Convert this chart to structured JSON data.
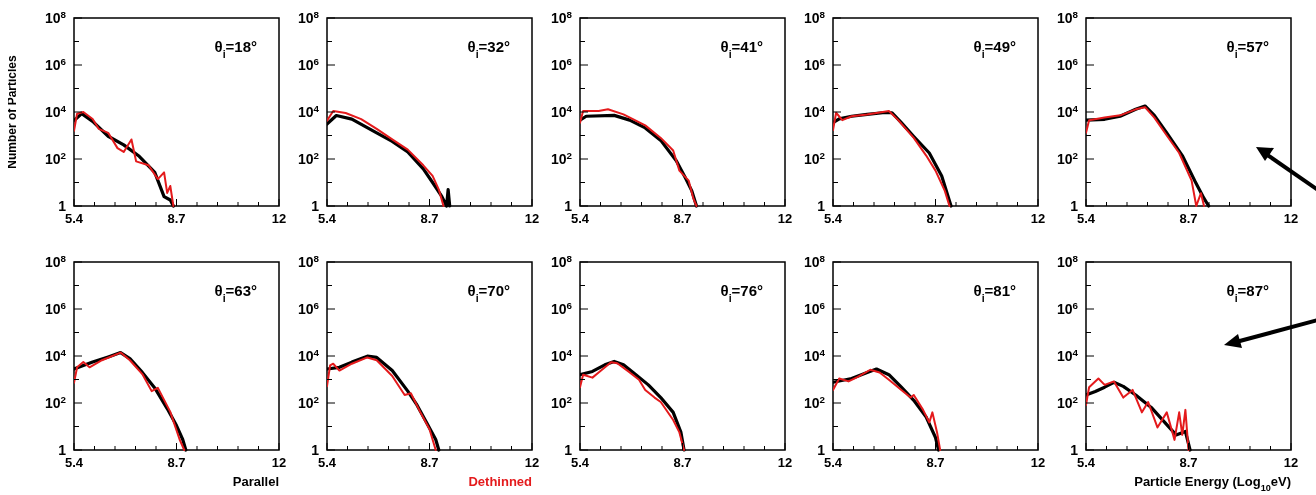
{
  "chart_data": [
    {
      "type": "line",
      "title": "θ$_{i}$=18°",
      "ylabel": "Number of Particles",
      "xlim": [
        5.4,
        12
      ],
      "ylim": [
        1,
        100000000
      ],
      "log": true,
      "xticks": [
        5.4,
        {
          "value": 6.06,
          "label": null
        },
        {
          "value": 6.72,
          "label": null
        },
        {
          "value": 7.38,
          "label": null
        },
        {
          "value": 8.04,
          "label": null
        },
        8.7,
        {
          "value": 9.36,
          "label": null
        },
        {
          "value": 10.02,
          "label": null
        },
        {
          "value": 10.68,
          "label": null
        },
        {
          "value": 11.34,
          "label": null
        },
        12
      ],
      "yticks": [
        {
          "value": 1,
          "label": "1"
        },
        {
          "value": 10,
          "label": null
        },
        {
          "value": 100,
          "label": "10$^{2}$"
        },
        {
          "value": 1000,
          "label": null
        },
        {
          "value": 10000,
          "label": "10$^{4}$"
        },
        {
          "value": 100000,
          "label": null
        },
        {
          "value": 1000000,
          "label": "10$^{6}$"
        },
        {
          "value": 10000000,
          "label": null
        },
        {
          "value": 100000000,
          "label": "10$^{8}$"
        }
      ],
      "series": [
        {
          "color": "#000000",
          "x": [
            5.4,
            5.65,
            6.0,
            6.5,
            7.0,
            7.5,
            8.0,
            8.3,
            8.5,
            8.6
          ],
          "values": [
            4300,
            8500,
            4000,
            930,
            400,
            130,
            27,
            2.5,
            1.8,
            1
          ]
        },
        {
          "color": "#e41a1c",
          "x": [
            5.4,
            5.5,
            5.7,
            6.0,
            6.2,
            6.5,
            6.8,
            7.0,
            7.25,
            7.4,
            7.8,
            8.1,
            8.3,
            8.4,
            8.5,
            8.6
          ],
          "values": [
            1600,
            8500,
            10000,
            5000,
            1900,
            1300,
            290,
            200,
            680,
            79,
            54,
            14,
            27,
            3.6,
            7.1,
            1
          ]
        }
      ]
    },
    {
      "type": "line",
      "title": "θ$_{i}$=32°",
      "xlim": [
        5.4,
        12
      ],
      "ylim": [
        1,
        100000000
      ],
      "log": true,
      "xticks": [
        5.4,
        {
          "value": 6.06,
          "label": null
        },
        {
          "value": 6.72,
          "label": null
        },
        {
          "value": 7.38,
          "label": null
        },
        {
          "value": 8.04,
          "label": null
        },
        8.7,
        {
          "value": 9.36,
          "label": null
        },
        {
          "value": 10.02,
          "label": null
        },
        {
          "value": 10.68,
          "label": null
        },
        {
          "value": 11.34,
          "label": null
        },
        12
      ],
      "yticks": [
        {
          "value": 1,
          "label": "1"
        },
        {
          "value": 10,
          "label": null
        },
        {
          "value": 100,
          "label": "10$^{2}$"
        },
        {
          "value": 1000,
          "label": null
        },
        {
          "value": 10000,
          "label": "10$^{4}$"
        },
        {
          "value": 100000,
          "label": null
        },
        {
          "value": 1000000,
          "label": "10$^{6}$"
        },
        {
          "value": 10000000,
          "label": null
        },
        {
          "value": 100000000,
          "label": "10$^{8}$"
        }
      ],
      "series": [
        {
          "color": "#000000",
          "x": [
            5.4,
            5.7,
            6.2,
            7.0,
            7.5,
            8.0,
            8.5,
            8.8,
            9.1,
            9.25,
            9.3,
            9.35
          ],
          "values": [
            3100,
            7100,
            5000,
            1300,
            560,
            200,
            38,
            10,
            2.5,
            1,
            5,
            1
          ]
        },
        {
          "color": "#e41a1c",
          "x": [
            5.4,
            5.6,
            6.0,
            6.5,
            7.0,
            7.5,
            8.0,
            8.5,
            8.8,
            9.0,
            9.15
          ],
          "values": [
            4300,
            11000,
            9100,
            5000,
            1900,
            680,
            250,
            54,
            19,
            5,
            1
          ]
        }
      ]
    },
    {
      "type": "line",
      "title": "θ$_{i}$=41°",
      "xlim": [
        5.4,
        12
      ],
      "ylim": [
        1,
        100000000
      ],
      "log": true,
      "xticks": [
        5.4,
        {
          "value": 6.06,
          "label": null
        },
        {
          "value": 6.72,
          "label": null
        },
        {
          "value": 7.38,
          "label": null
        },
        {
          "value": 8.04,
          "label": null
        },
        8.7,
        {
          "value": 9.36,
          "label": null
        },
        {
          "value": 10.02,
          "label": null
        },
        {
          "value": 10.68,
          "label": null
        },
        {
          "value": 11.34,
          "label": null
        },
        12
      ],
      "yticks": [
        {
          "value": 1,
          "label": "1"
        },
        {
          "value": 10,
          "label": null
        },
        {
          "value": 100,
          "label": "10$^{2}$"
        },
        {
          "value": 1000,
          "label": null
        },
        {
          "value": 10000,
          "label": "10$^{4}$"
        },
        {
          "value": 100000,
          "label": null
        },
        {
          "value": 1000000,
          "label": "10$^{6}$"
        },
        {
          "value": 10000000,
          "label": null
        },
        {
          "value": 100000000,
          "label": "10$^{8}$"
        }
      ],
      "series": [
        {
          "color": "#000000",
          "x": [
            5.4,
            5.6,
            6.5,
            7.0,
            7.5,
            8.0,
            8.5,
            8.8,
            9.0,
            9.15
          ],
          "values": [
            4500,
            6600,
            7200,
            4500,
            2100,
            620,
            85,
            15,
            4.4,
            1
          ]
        },
        {
          "color": "#e41a1c",
          "x": [
            5.4,
            5.5,
            6.0,
            6.3,
            6.8,
            7.5,
            8.0,
            8.4,
            8.6,
            8.9,
            9.05,
            9.15
          ],
          "values": [
            3500,
            11000,
            11000,
            13000,
            7900,
            2700,
            790,
            230,
            32,
            12,
            2.1,
            1
          ]
        }
      ]
    },
    {
      "type": "line",
      "title": "θ$_{i}$=49°",
      "xlim": [
        5.4,
        12
      ],
      "ylim": [
        1,
        100000000
      ],
      "log": true,
      "xticks": [
        5.4,
        {
          "value": 6.06,
          "label": null
        },
        {
          "value": 6.72,
          "label": null
        },
        {
          "value": 7.38,
          "label": null
        },
        {
          "value": 8.04,
          "label": null
        },
        8.7,
        {
          "value": 9.36,
          "label": null
        },
        {
          "value": 10.02,
          "label": null
        },
        {
          "value": 10.68,
          "label": null
        },
        {
          "value": 11.34,
          "label": null
        },
        12
      ],
      "yticks": [
        {
          "value": 1,
          "label": "1"
        },
        {
          "value": 10,
          "label": null
        },
        {
          "value": 100,
          "label": "10$^{2}$"
        },
        {
          "value": 1000,
          "label": null
        },
        {
          "value": 10000,
          "label": "10$^{4}$"
        },
        {
          "value": 100000,
          "label": null
        },
        {
          "value": 1000000,
          "label": "10$^{6}$"
        },
        {
          "value": 10000000,
          "label": null
        },
        {
          "value": 100000000,
          "label": "10$^{8}$"
        }
      ],
      "series": [
        {
          "color": "#000000",
          "x": [
            5.4,
            5.6,
            6.0,
            6.5,
            7.0,
            7.3,
            7.6,
            8.0,
            8.5,
            8.9,
            9.2
          ],
          "values": [
            3500,
            5100,
            6600,
            7900,
            9300,
            9300,
            3500,
            910,
            180,
            19,
            1
          ]
        },
        {
          "color": "#e41a1c",
          "x": [
            5.4,
            5.5,
            5.7,
            6.0,
            6.5,
            7.2,
            7.5,
            8.0,
            8.4,
            8.7,
            9.0,
            9.15
          ],
          "values": [
            1700,
            9300,
            4500,
            6600,
            7900,
            11000,
            4500,
            790,
            140,
            32,
            4.4,
            1
          ]
        }
      ]
    },
    {
      "type": "line",
      "title": "θ$_{i}$=57°",
      "xlim": [
        5.4,
        12
      ],
      "ylim": [
        1,
        100000000
      ],
      "log": true,
      "xticks": [
        5.4,
        {
          "value": 6.06,
          "label": null
        },
        {
          "value": 6.72,
          "label": null
        },
        {
          "value": 7.38,
          "label": null
        },
        {
          "value": 8.04,
          "label": null
        },
        8.7,
        {
          "value": 9.36,
          "label": null
        },
        {
          "value": 10.02,
          "label": null
        },
        {
          "value": 10.68,
          "label": null
        },
        {
          "value": 11.34,
          "label": null
        },
        12
      ],
      "yticks": [
        {
          "value": 1,
          "label": "1"
        },
        {
          "value": 10,
          "label": null
        },
        {
          "value": 100,
          "label": "10$^{2}$"
        },
        {
          "value": 1000,
          "label": null
        },
        {
          "value": 10000,
          "label": "10$^{4}$"
        },
        {
          "value": 100000,
          "label": null
        },
        {
          "value": 1000000,
          "label": "10$^{6}$"
        },
        {
          "value": 10000000,
          "label": null
        },
        {
          "value": 100000000,
          "label": "10$^{8}$"
        }
      ],
      "series": [
        {
          "color": "#000000",
          "x": [
            5.4,
            6.0,
            6.5,
            7.0,
            7.3,
            7.6,
            8.0,
            8.5,
            8.9,
            9.2,
            9.35
          ],
          "values": [
            4500,
            4900,
            6600,
            13000,
            18000,
            7200,
            1300,
            140,
            12,
            2.1,
            1
          ]
        },
        {
          "color": "#e41a1c",
          "x": [
            5.4,
            5.5,
            6.0,
            6.5,
            7.0,
            7.3,
            7.6,
            8.0,
            8.4,
            8.8,
            8.95,
            9.1,
            9.2
          ],
          "values": [
            1300,
            4500,
            5800,
            7200,
            13000,
            16000,
            5800,
            1000,
            180,
            12,
            1,
            3.5,
            1
          ]
        }
      ]
    },
    {
      "type": "line",
      "title": "θ$_{i}$=63°",
      "legend": "bottom right",
      "xlim": [
        5.4,
        12
      ],
      "ylim": [
        1,
        100000000
      ],
      "log": true,
      "xticks": [
        5.4,
        {
          "value": 6.06,
          "label": null
        },
        {
          "value": 6.72,
          "label": null
        },
        {
          "value": 7.38,
          "label": null
        },
        {
          "value": 8.04,
          "label": null
        },
        8.7,
        {
          "value": 9.36,
          "label": null
        },
        {
          "value": 10.02,
          "label": null
        },
        {
          "value": 10.68,
          "label": null
        },
        {
          "value": 11.34,
          "label": null
        },
        12
      ],
      "yticks": [
        {
          "value": 1,
          "label": "1"
        },
        {
          "value": 10,
          "label": null
        },
        {
          "value": 100,
          "label": "10$^{2}$"
        },
        {
          "value": 1000,
          "label": null
        },
        {
          "value": 10000,
          "label": "10$^{4}$"
        },
        {
          "value": 100000,
          "label": null
        },
        {
          "value": 1000000,
          "label": "10$^{6}$"
        },
        {
          "value": 10000000,
          "label": null
        },
        {
          "value": 100000000,
          "label": "10$^{8}$"
        }
      ],
      "series": [
        {
          "name": "Parallel",
          "color": "#000000",
          "x": [
            5.4,
            6.0,
            6.5,
            6.9,
            7.2,
            7.6,
            8.0,
            8.4,
            8.7,
            8.9,
            9.0
          ],
          "values": [
            2800,
            5500,
            9100,
            14000,
            7800,
            2000,
            440,
            58,
            11,
            2.8,
            1
          ]
        },
        {
          "color": "#e41a1c",
          "x": [
            5.4,
            5.5,
            5.7,
            5.9,
            6.3,
            6.9,
            7.2,
            7.6,
            7.9,
            8.1,
            8.5,
            8.8,
            8.95
          ],
          "values": [
            720,
            3300,
            5500,
            3300,
            6600,
            14000,
            6600,
            1700,
            320,
            440,
            42,
            2.8,
            1
          ]
        }
      ]
    },
    {
      "type": "line",
      "title": "θ$_{i}$=70°",
      "legend": "bottom right",
      "xlim": [
        5.4,
        12
      ],
      "ylim": [
        1,
        100000000
      ],
      "log": true,
      "xticks": [
        5.4,
        {
          "value": 6.06,
          "label": null
        },
        {
          "value": 6.72,
          "label": null
        },
        {
          "value": 7.38,
          "label": null
        },
        {
          "value": 8.04,
          "label": null
        },
        8.7,
        {
          "value": 9.36,
          "label": null
        },
        {
          "value": 10.02,
          "label": null
        },
        {
          "value": 10.68,
          "label": null
        },
        {
          "value": 11.34,
          "label": null
        },
        12
      ],
      "yticks": [
        {
          "value": 1,
          "label": "1"
        },
        {
          "value": 10,
          "label": null
        },
        {
          "value": 100,
          "label": "10$^{2}$"
        },
        {
          "value": 1000,
          "label": null
        },
        {
          "value": 10000,
          "label": "10$^{4}$"
        },
        {
          "value": 100000,
          "label": null
        },
        {
          "value": 1000000,
          "label": "10$^{6}$"
        },
        {
          "value": 10000000,
          "label": null
        },
        {
          "value": 100000000,
          "label": "10$^{8}$"
        }
      ],
      "series": [
        {
          "color": "#000000",
          "x": [
            5.4,
            5.8,
            6.2,
            6.7,
            7.0,
            7.5,
            8.0,
            8.3,
            8.6,
            8.9,
            9.0
          ],
          "values": [
            2800,
            3300,
            5500,
            9800,
            8700,
            2400,
            320,
            81,
            15,
            2.8,
            1
          ]
        },
        {
          "name": "Dethinned",
          "color": "#e41a1c",
          "x": [
            5.4,
            5.5,
            5.6,
            5.8,
            6.2,
            6.7,
            7.0,
            7.5,
            7.9,
            8.1,
            8.4,
            8.7,
            8.9
          ],
          "values": [
            520,
            4000,
            4700,
            2400,
            4700,
            8700,
            6600,
            1400,
            220,
            260,
            42,
            7.6,
            1
          ]
        }
      ]
    },
    {
      "type": "line",
      "title": "θ$_{i}$=76°",
      "xlim": [
        5.4,
        12
      ],
      "ylim": [
        1,
        100000000
      ],
      "log": true,
      "xticks": [
        5.4,
        {
          "value": 6.06,
          "label": null
        },
        {
          "value": 6.72,
          "label": null
        },
        {
          "value": 7.38,
          "label": null
        },
        {
          "value": 8.04,
          "label": null
        },
        8.7,
        {
          "value": 9.36,
          "label": null
        },
        {
          "value": 10.02,
          "label": null
        },
        {
          "value": 10.68,
          "label": null
        },
        {
          "value": 11.34,
          "label": null
        },
        12
      ],
      "yticks": [
        {
          "value": 1,
          "label": "1"
        },
        {
          "value": 10,
          "label": null
        },
        {
          "value": 100,
          "label": "10$^{2}$"
        },
        {
          "value": 1000,
          "label": null
        },
        {
          "value": 10000,
          "label": "10$^{4}$"
        },
        {
          "value": 100000,
          "label": null
        },
        {
          "value": 1000000,
          "label": "10$^{6}$"
        },
        {
          "value": 10000000,
          "label": null
        },
        {
          "value": 100000000,
          "label": "10$^{8}$"
        }
      ],
      "series": [
        {
          "color": "#000000",
          "x": [
            5.4,
            5.8,
            6.2,
            6.5,
            6.8,
            7.2,
            7.6,
            8.0,
            8.4,
            8.65,
            8.75
          ],
          "values": [
            1600,
            2200,
            4200,
            5900,
            4200,
            1600,
            590,
            170,
            40,
            5.6,
            1
          ]
        },
        {
          "color": "#e41a1c",
          "x": [
            5.4,
            5.5,
            5.8,
            6.0,
            6.4,
            6.6,
            7.0,
            7.3,
            7.5,
            7.8,
            8.0,
            8.4,
            8.6,
            8.75
          ],
          "values": [
            470,
            1600,
            1200,
            2000,
            5400,
            4900,
            2000,
            980,
            360,
            170,
            110,
            19,
            5.6,
            1
          ]
        }
      ]
    },
    {
      "type": "line",
      "title": "θ$_{i}$=81°",
      "xlim": [
        5.4,
        12
      ],
      "ylim": [
        1,
        100000000
      ],
      "log": true,
      "xticks": [
        5.4,
        {
          "value": 6.06,
          "label": null
        },
        {
          "value": 6.72,
          "label": null
        },
        {
          "value": 7.38,
          "label": null
        },
        {
          "value": 8.04,
          "label": null
        },
        8.7,
        {
          "value": 9.36,
          "label": null
        },
        {
          "value": 10.02,
          "label": null
        },
        {
          "value": 10.68,
          "label": null
        },
        {
          "value": 11.34,
          "label": null
        },
        12
      ],
      "yticks": [
        {
          "value": 1,
          "label": "1"
        },
        {
          "value": 10,
          "label": null
        },
        {
          "value": 100,
          "label": "10$^{2}$"
        },
        {
          "value": 1000,
          "label": null
        },
        {
          "value": 10000,
          "label": "10$^{4}$"
        },
        {
          "value": 100000,
          "label": null
        },
        {
          "value": 1000000,
          "label": "10$^{6}$"
        },
        {
          "value": 10000000,
          "label": null
        },
        {
          "value": 100000000,
          "label": "10$^{8}$"
        }
      ],
      "series": [
        {
          "color": "#000000",
          "x": [
            5.4,
            6.0,
            6.5,
            6.8,
            7.2,
            7.6,
            8.0,
            8.4,
            8.7,
            8.8
          ],
          "values": [
            760,
            1100,
            2000,
            2800,
            1600,
            470,
            130,
            25,
            3.4,
            1
          ]
        },
        {
          "color": "#e41a1c",
          "x": [
            5.4,
            5.6,
            5.9,
            6.2,
            6.6,
            6.9,
            7.2,
            7.6,
            7.9,
            8.0,
            8.3,
            8.5,
            8.6,
            8.75,
            8.85
          ],
          "values": [
            360,
            1100,
            830,
            1300,
            2600,
            2000,
            980,
            360,
            170,
            220,
            51,
            15,
            40,
            5.6,
            1
          ]
        }
      ]
    },
    {
      "type": "line",
      "title": "θ$_{i}$=87°",
      "xlabel": "Particle Energy (Log$_{10}$eV)",
      "xlim": [
        5.4,
        12
      ],
      "ylim": [
        1,
        100000000
      ],
      "log": true,
      "xticks": [
        5.4,
        {
          "value": 6.06,
          "label": null
        },
        {
          "value": 6.72,
          "label": null
        },
        {
          "value": 7.38,
          "label": null
        },
        {
          "value": 8.04,
          "label": null
        },
        8.7,
        {
          "value": 9.36,
          "label": null
        },
        {
          "value": 10.02,
          "label": null
        },
        {
          "value": 10.68,
          "label": null
        },
        {
          "value": 11.34,
          "label": null
        },
        12
      ],
      "yticks": [
        {
          "value": 1,
          "label": "1"
        },
        {
          "value": 10,
          "label": null
        },
        {
          "value": 100,
          "label": "10$^{2}$"
        },
        {
          "value": 1000,
          "label": null
        },
        {
          "value": 10000,
          "label": "10$^{4}$"
        },
        {
          "value": 100000,
          "label": null
        },
        {
          "value": 1000000,
          "label": "10$^{6}$"
        },
        {
          "value": 10000000,
          "label": null
        },
        {
          "value": 100000000,
          "label": "10$^{8}$"
        }
      ],
      "series": [
        {
          "color": "#000000",
          "x": [
            5.4,
            5.7,
            6.0,
            6.3,
            6.6,
            7.0,
            7.5,
            8.0,
            8.3,
            8.6,
            8.75
          ],
          "values": [
            220,
            310,
            470,
            760,
            510,
            220,
            65,
            12,
            4.4,
            6.2,
            1
          ]
        },
        {
          "color": "#e41a1c",
          "x": [
            5.4,
            5.5,
            5.8,
            6.0,
            6.3,
            6.6,
            6.9,
            7.2,
            7.4,
            7.7,
            8.0,
            8.25,
            8.4,
            8.5,
            8.6,
            8.7
          ],
          "values": [
            83,
            470,
            1100,
            590,
            830,
            170,
            360,
            40,
            110,
            9.1,
            40,
            2.7,
            40,
            4.4,
            51,
            1
          ]
        }
      ]
    }
  ]
}
